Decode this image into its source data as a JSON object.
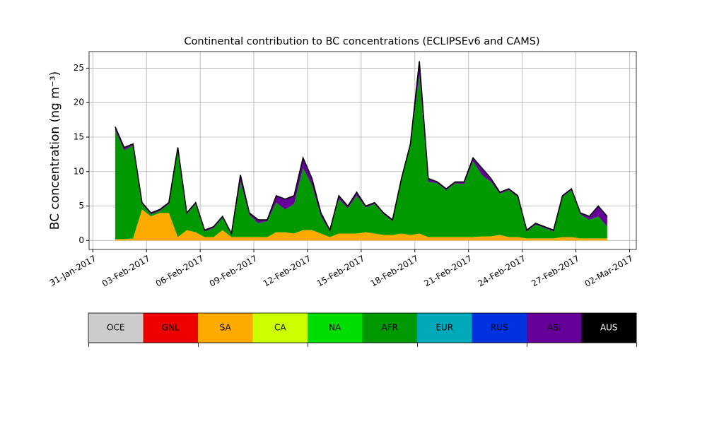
{
  "chart_data": {
    "type": "stacked_area",
    "title": "Continental contribution to BC concentrations (ECLIPSEv6 and CAMS)",
    "y_label": "BC concentration (ng m⁻³)",
    "x": [
      "2017-02-01T06:00",
      "2017-02-01T18:00",
      "2017-02-02T06:00",
      "2017-02-02T18:00",
      "2017-02-03T06:00",
      "2017-02-03T18:00",
      "2017-02-04T06:00",
      "2017-02-04T18:00",
      "2017-02-05T06:00",
      "2017-02-05T18:00",
      "2017-02-06T06:00",
      "2017-02-06T18:00",
      "2017-02-07T06:00",
      "2017-02-07T18:00",
      "2017-02-08T06:00",
      "2017-02-08T18:00",
      "2017-02-09T06:00",
      "2017-02-09T18:00",
      "2017-02-10T06:00",
      "2017-02-10T18:00",
      "2017-02-11T06:00",
      "2017-02-11T18:00",
      "2017-02-12T06:00",
      "2017-02-12T18:00",
      "2017-02-13T06:00",
      "2017-02-13T18:00",
      "2017-02-14T06:00",
      "2017-02-14T18:00",
      "2017-02-15T06:00",
      "2017-02-15T18:00",
      "2017-02-16T06:00",
      "2017-02-16T18:00",
      "2017-02-17T06:00",
      "2017-02-17T18:00",
      "2017-02-18T06:00",
      "2017-02-18T18:00",
      "2017-02-19T06:00",
      "2017-02-19T18:00",
      "2017-02-20T06:00",
      "2017-02-20T18:00",
      "2017-02-21T06:00",
      "2017-02-21T18:00",
      "2017-02-22T06:00",
      "2017-02-22T18:00",
      "2017-02-23T06:00",
      "2017-02-23T18:00",
      "2017-02-24T06:00",
      "2017-02-24T18:00",
      "2017-02-25T06:00",
      "2017-02-25T18:00",
      "2017-02-26T06:00",
      "2017-02-26T18:00",
      "2017-02-27T06:00",
      "2017-02-27T18:00",
      "2017-02-28T06:00",
      "2017-02-28T18:00"
    ],
    "series": [
      {
        "name": "SA",
        "color": "#ffaa00",
        "values": [
          0.2,
          0.2,
          0.3,
          4.5,
          3.5,
          4.0,
          4.0,
          0.5,
          1.5,
          1.2,
          0.5,
          0.5,
          1.5,
          0.5,
          0.5,
          0.5,
          0.5,
          0.5,
          1.2,
          1.2,
          1.0,
          1.5,
          1.5,
          1.0,
          0.5,
          1.0,
          1.0,
          1.0,
          1.2,
          1.0,
          0.8,
          0.8,
          1.0,
          0.8,
          1.0,
          0.5,
          0.5,
          0.5,
          0.5,
          0.5,
          0.5,
          0.6,
          0.6,
          0.8,
          0.5,
          0.5,
          0.3,
          0.3,
          0.3,
          0.3,
          0.5,
          0.5,
          0.3,
          0.3,
          0.3,
          0.3
        ]
      },
      {
        "name": "AFR",
        "color": "#009900",
        "values": [
          15.8,
          12.9,
          13.5,
          0.8,
          0.3,
          0.3,
          1.3,
          12.7,
          2.3,
          4.1,
          0.8,
          1.3,
          1.8,
          0.3,
          8.0,
          3.2,
          2.0,
          2.3,
          4.3,
          3.3,
          4.3,
          9.0,
          6.5,
          2.5,
          0.8,
          5.0,
          3.7,
          5.5,
          3.6,
          4.3,
          3.0,
          2.0,
          7.8,
          13.0,
          23.0,
          8.0,
          7.8,
          6.8,
          7.8,
          7.7,
          11.0,
          8.9,
          7.9,
          6.0,
          6.8,
          5.8,
          1.0,
          2.0,
          1.5,
          1.0,
          5.8,
          6.8,
          3.5,
          2.7,
          3.2,
          1.7
        ]
      },
      {
        "name": "ASI",
        "color": "#660099",
        "values": [
          0.5,
          0.4,
          0.2,
          0.2,
          0.2,
          0.2,
          0.2,
          0.3,
          0.2,
          0.2,
          0.2,
          0.2,
          0.2,
          0.2,
          1.0,
          0.3,
          0.5,
          0.2,
          1.0,
          1.5,
          1.2,
          1.5,
          1.0,
          0.5,
          0.2,
          0.5,
          0.3,
          0.5,
          0.2,
          0.2,
          0.2,
          0.2,
          0.2,
          0.2,
          2.0,
          0.5,
          0.2,
          0.2,
          0.2,
          0.3,
          0.5,
          1.0,
          0.5,
          0.2,
          0.2,
          0.2,
          0.2,
          0.2,
          0.2,
          0.2,
          0.2,
          0.2,
          0.2,
          0.5,
          1.5,
          1.5
        ]
      }
    ],
    "xlim": [
      "2017-01-30T19:00",
      "2017-03-02T09:00"
    ],
    "xticks": [
      {
        "value": "2017-01-31T00:00",
        "label": "31-Jan-2017"
      },
      {
        "value": "2017-02-03T00:00",
        "label": "03-Feb-2017"
      },
      {
        "value": "2017-02-06T00:00",
        "label": "06-Feb-2017"
      },
      {
        "value": "2017-02-09T00:00",
        "label": "09-Feb-2017"
      },
      {
        "value": "2017-02-12T00:00",
        "label": "12-Feb-2017"
      },
      {
        "value": "2017-02-15T00:00",
        "label": "15-Feb-2017"
      },
      {
        "value": "2017-02-18T00:00",
        "label": "18-Feb-2017"
      },
      {
        "value": "2017-02-21T00:00",
        "label": "21-Feb-2017"
      },
      {
        "value": "2017-02-24T00:00",
        "label": "24-Feb-2017"
      },
      {
        "value": "2017-02-27T00:00",
        "label": "27-Feb-2017"
      },
      {
        "value": "2017-03-02T00:00",
        "label": "02-Mar-2017"
      }
    ],
    "ylim": [
      -1.3,
      27.4
    ],
    "yticks": [
      0,
      5,
      10,
      15,
      20,
      25
    ],
    "grid": true,
    "colorbar": {
      "labels": [
        "OCE",
        "GNL",
        "SA",
        "CA",
        "NA",
        "AFR",
        "EUR",
        "RUS",
        "ASI",
        "AUS"
      ],
      "colors": [
        "#cccccc",
        "#ee0000",
        "#ffaa00",
        "#ccff00",
        "#00dd00",
        "#009900",
        "#00aabb",
        "#0033dd",
        "#660099",
        "#000000"
      ]
    }
  }
}
